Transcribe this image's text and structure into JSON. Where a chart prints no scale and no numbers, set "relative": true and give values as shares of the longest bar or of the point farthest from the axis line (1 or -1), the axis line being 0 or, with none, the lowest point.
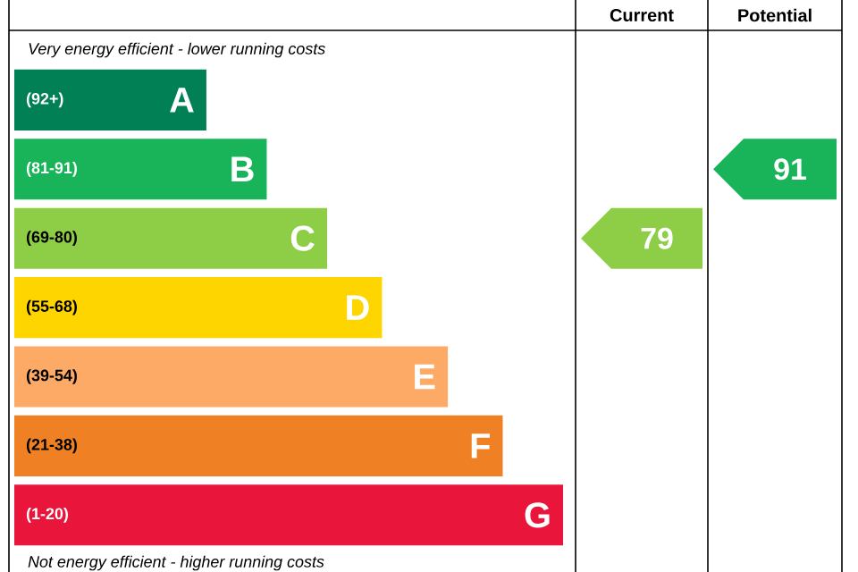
{
  "chart_data": {
    "type": "bar",
    "orientation": "horizontal",
    "relative": true,
    "categories": [
      "(92+)",
      "(81-91)",
      "(69-80)",
      "(55-68)",
      "(39-54)",
      "(21-38)",
      "(1-20)"
    ],
    "values": [
      0.35,
      0.46,
      0.57,
      0.67,
      0.79,
      0.89,
      1
    ],
    "colors": [
      "#008054",
      "#19b459",
      "#8dce46",
      "#ffd500",
      "#fcaa65",
      "#ef8023",
      "#e9153b"
    ],
    "annotations": [
      "Very energy efficient - lower running costs",
      "Not energy efficient - higher running costs",
      "Current",
      "Potential",
      "79",
      "91",
      "A",
      "B",
      "C",
      "D",
      "E",
      "F",
      "G"
    ]
  }
}
